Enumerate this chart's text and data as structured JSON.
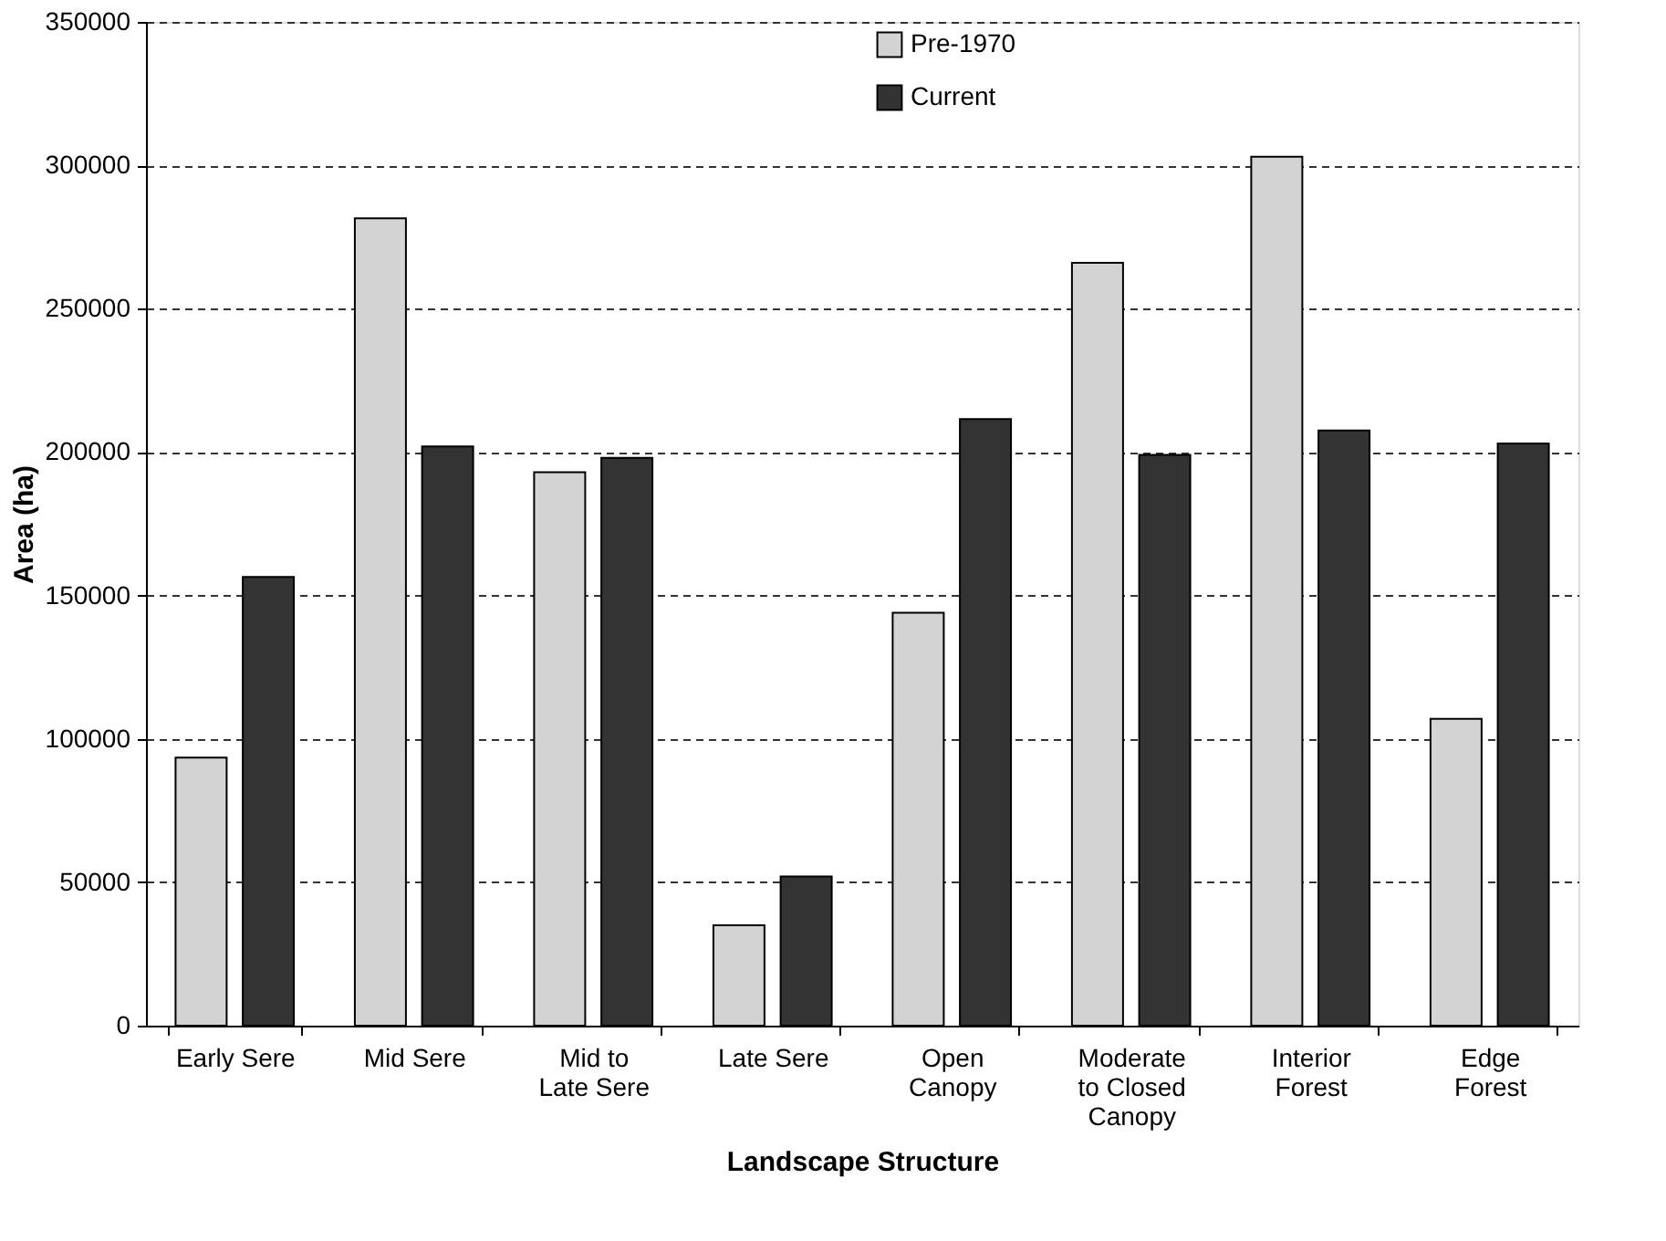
{
  "chart_data": {
    "type": "bar",
    "xlabel": "Landscape Structure",
    "ylabel": "Area (ha)",
    "categories": [
      "Early Sere",
      "Mid Sere",
      "Mid to\nLate Sere",
      "Late Sere",
      "Open\nCanopy",
      "Moderate\nto Closed\nCanopy",
      "Interior\nForest",
      "Edge\nForest"
    ],
    "series": [
      {
        "name": "Pre-1970",
        "color": "#d3d3d3",
        "values": [
          93500,
          281500,
          193000,
          35000,
          144000,
          266000,
          303000,
          107000
        ]
      },
      {
        "name": "Current",
        "color": "#333333",
        "values": [
          156500,
          202000,
          198000,
          52000,
          211500,
          199000,
          207500,
          203000
        ]
      }
    ],
    "ylim": [
      0,
      350000
    ],
    "yticks": [
      0,
      50000,
      100000,
      150000,
      200000,
      250000,
      300000,
      350000
    ],
    "grid": "y",
    "legend": "top"
  }
}
